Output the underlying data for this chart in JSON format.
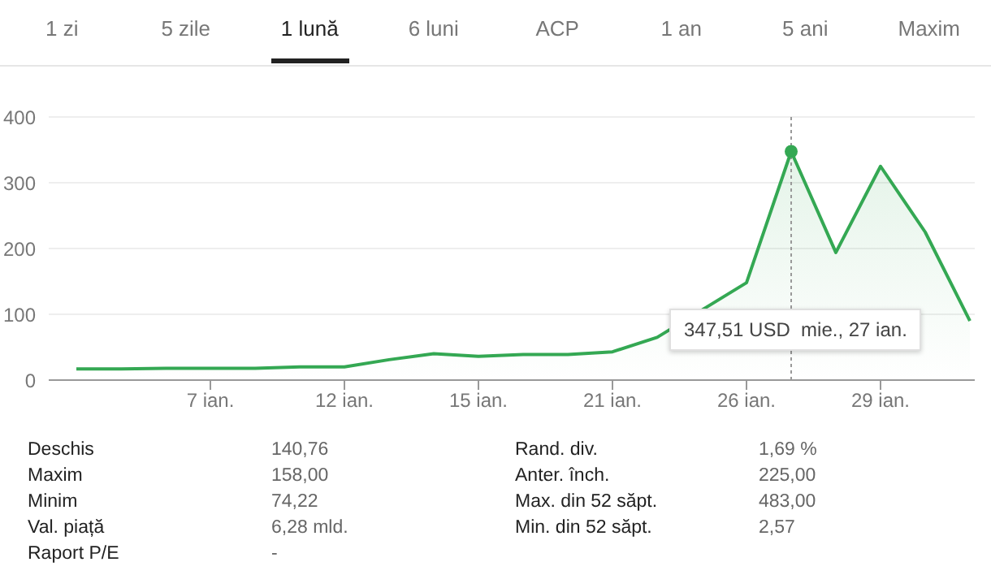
{
  "chart_data": [
    {
      "type": "other",
      "annotations": [
        "1 zi",
        "5 zile",
        "1 lună",
        "6 luni",
        "ACP",
        "1 an",
        "5 ani",
        "Maxim"
      ]
    },
    {
      "type": "area",
      "categories": [
        null,
        null,
        null,
        "7 ian.",
        null,
        null,
        "12 ian.",
        null,
        null,
        "15 ian.",
        null,
        null,
        "21 ian.",
        null,
        null,
        "26 ian.",
        null,
        null,
        "29 ian.",
        null,
        null
      ],
      "series": [
        {
          "color": "#34a853",
          "values": [
            17,
            17,
            18,
            18,
            18,
            20,
            20,
            31,
            40,
            36,
            39,
            39,
            43,
            65,
            null,
            148,
            347.51,
            194,
            325,
            225,
            90
          ]
        }
      ],
      "ylim": [
        0,
        400
      ],
      "yticks": [
        0,
        100,
        200,
        300,
        400
      ],
      "grid": "y",
      "annotations": [
        "347,51 USD  mie., 27 ian."
      ]
    },
    {
      "type": "other",
      "annotations": [
        "Deschis",
        "140,76",
        "Rand. div.",
        "1,69 %",
        "Maxim",
        "158,00",
        "Anter. înch.",
        "225,00",
        "Minim",
        "74,22",
        "Max. din 52 săpt.",
        "483,00",
        "Val. piață",
        "6,28 mld.",
        "Min. din 52 săpt.",
        "2,57",
        "Raport P/E",
        "-"
      ]
    }
  ]
}
